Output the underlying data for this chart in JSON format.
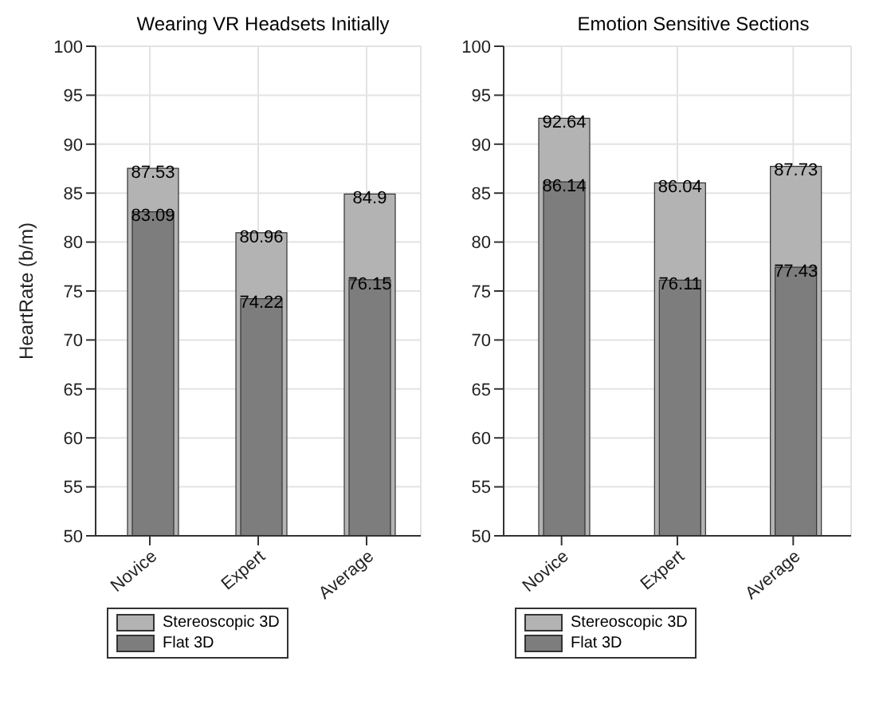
{
  "chart_data": [
    {
      "type": "bar",
      "title": "Wearing VR Headsets Initially",
      "ylabel": "HeartRate (b/m)",
      "categories": [
        "Novice",
        "Expert",
        "Average"
      ],
      "series": [
        {
          "name": "Stereoscopic 3D",
          "color": "#b3b3b3",
          "values": [
            87.53,
            80.96,
            84.9
          ]
        },
        {
          "name": "Flat 3D",
          "color": "#7d7d7d",
          "values": [
            83.09,
            74.22,
            76.15
          ]
        }
      ],
      "ylim": [
        50,
        100
      ],
      "yticks": [
        50,
        55,
        60,
        65,
        70,
        75,
        80,
        85,
        90,
        95,
        100
      ],
      "grid": true,
      "legend": "bottom left",
      "data_labels": true
    },
    {
      "type": "bar",
      "title": "Emotion Sensitive Sections",
      "categories": [
        "Novice",
        "Expert",
        "Average"
      ],
      "series": [
        {
          "name": "Stereoscopic 3D",
          "color": "#b3b3b3",
          "values": [
            92.64,
            86.04,
            87.73
          ]
        },
        {
          "name": "Flat 3D",
          "color": "#7d7d7d",
          "values": [
            86.14,
            76.11,
            77.43
          ]
        }
      ],
      "ylim": [
        50,
        100
      ],
      "yticks": [
        50,
        55,
        60,
        65,
        70,
        75,
        80,
        85,
        90,
        95,
        100
      ],
      "grid": true,
      "legend": "bottom left",
      "data_labels": true
    }
  ]
}
